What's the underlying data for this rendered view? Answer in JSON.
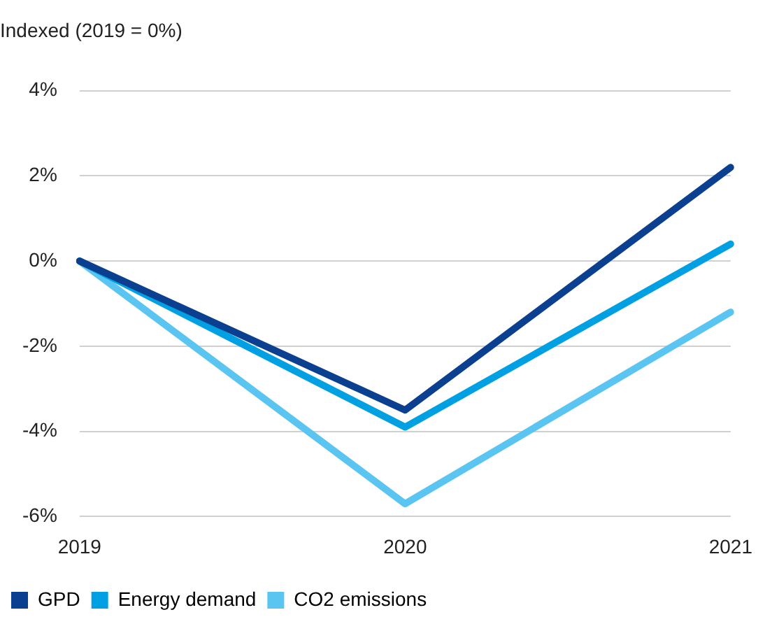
{
  "chart_data": {
    "type": "line",
    "title": "Indexed (2019 = 0%)",
    "categories": [
      "2019",
      "2020",
      "2021"
    ],
    "series": [
      {
        "name": "GPD",
        "color": "#0b3f8f",
        "values": [
          0,
          -3.5,
          2.2
        ]
      },
      {
        "name": "Energy demand",
        "color": "#00a0e3",
        "values": [
          0,
          -3.9,
          0.4
        ]
      },
      {
        "name": "CO2 emissions",
        "color": "#5bc5f2",
        "values": [
          0,
          -5.7,
          -1.2
        ]
      }
    ],
    "ylim": [
      -6,
      4
    ],
    "yticks": [
      {
        "value": -6,
        "label": "-6%"
      },
      {
        "value": -4,
        "label": "-4%"
      },
      {
        "value": -2,
        "label": "-2%"
      },
      {
        "value": 0,
        "label": "0%"
      },
      {
        "value": 2,
        "label": "2%"
      },
      {
        "value": 4,
        "label": "4%"
      }
    ],
    "grid": "y",
    "legend": "bottom",
    "marker": "none",
    "line_style": "solid"
  }
}
